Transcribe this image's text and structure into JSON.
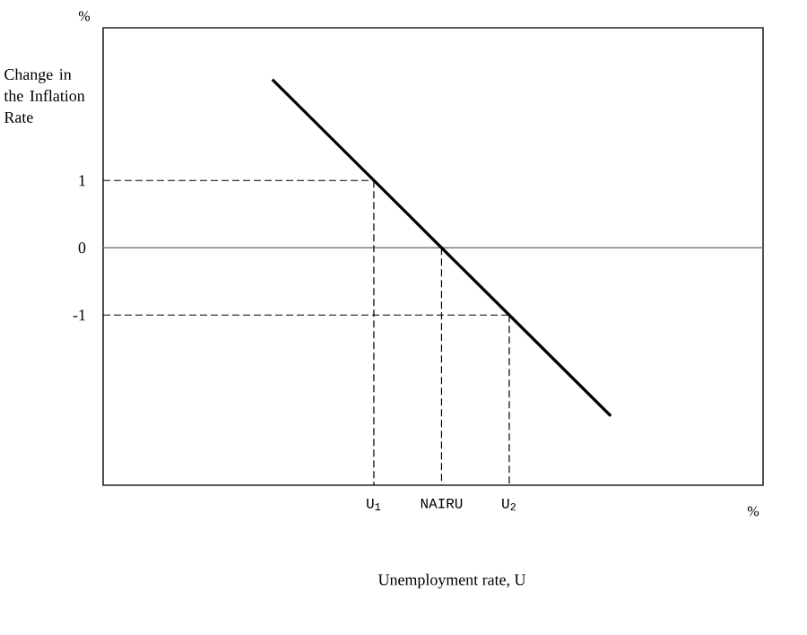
{
  "chart_data": {
    "type": "line",
    "xlabel": "Unemployment rate, U",
    "ylabel": "Change in the Inflation Rate",
    "annotations": [
      "%",
      "%"
    ],
    "categories": [
      null,
      null,
      null,
      null,
      null,
      null,
      null,
      null,
      "U$_{1}$",
      null,
      "NAIRU",
      null,
      "U$_{2}$",
      null,
      null,
      null,
      null,
      null,
      null,
      null
    ],
    "ylim": [
      -3.53,
      3.27
    ],
    "yticks": [
      -1,
      0,
      1
    ],
    "marker": "none",
    "ref_lines": [
      {
        "axis": "y",
        "value": 0,
        "color": "#808080",
        "line_style": "solid"
      }
    ],
    "series": [
      {
        "color": "#000000",
        "line_style": "solid",
        "values": [
          null,
          null,
          null,
          null,
          null,
          2.5,
          2,
          1.5,
          1,
          0.5,
          0,
          -0.5,
          -1,
          -1.5,
          -2,
          -2.5,
          null,
          null,
          null,
          null
        ]
      },
      {
        "color": "#000000",
        "line_style": "dashed",
        "values": [
          1,
          1,
          1,
          1,
          1,
          1,
          1,
          1,
          1,
          null,
          null,
          null,
          null,
          null,
          null,
          null,
          null,
          null,
          null,
          null
        ]
      },
      {
        "color": "#000000",
        "line_style": "dashed",
        "values": [
          -1,
          -1,
          -1,
          -1,
          -1,
          -1,
          -1,
          -1,
          -1,
          -1,
          -1,
          -1,
          -1,
          null,
          null,
          null,
          null,
          null,
          null,
          null
        ]
      },
      {
        "color": "#000000",
        "line_style": "dashed",
        "x": [
          "U$_{1}$",
          "U$_{1}$"
        ],
        "values": [
          1,
          -3.53
        ]
      },
      {
        "color": "#000000",
        "line_style": "dashed",
        "x": [
          "NAIRU",
          "NAIRU"
        ],
        "values": [
          0,
          -3.53
        ]
      },
      {
        "color": "#000000",
        "line_style": "dashed",
        "x": [
          "U$_{2}$",
          "U$_{2}$"
        ],
        "values": [
          -1,
          -3.53
        ]
      }
    ]
  }
}
